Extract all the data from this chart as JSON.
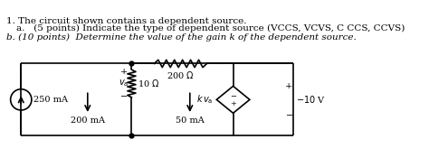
{
  "title_line1": "1. The circuit shown contains a dependent source.",
  "title_line2": "a.   (5 points) Indicate the type of dependent source (VCCS, VCVS, C CCS, CCVS)",
  "title_line3": "b. (10 points)  Determine the value of the gain k of the dependent source.",
  "bg_color": "#ffffff",
  "text_color": "#000000",
  "font_size_title": 7.5,
  "font_size_circuit": 7.0,
  "lw": 1.2
}
